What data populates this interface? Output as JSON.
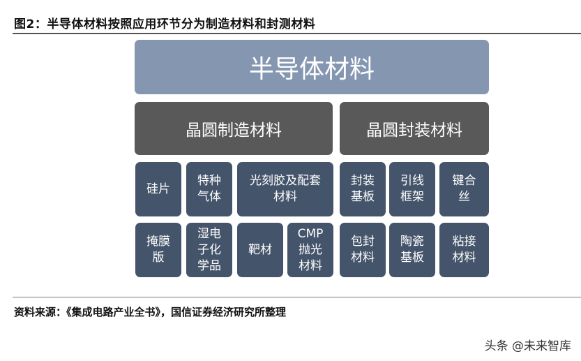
{
  "title": "图2：半导体材料按照应用环节分为制造材料和封测材料",
  "root": "半导体材料",
  "categories": [
    {
      "label": "晶圆制造材料",
      "items": [
        "硅片",
        "特种\n气体",
        "光刻胶及配套\n材料",
        "掩膜\n版",
        "湿电\n子化\n学品",
        "靶材",
        "CMP\n抛光\n材料"
      ]
    },
    {
      "label": "晶圆封装材料",
      "items": [
        "封装\n基板",
        "引线\n框架",
        "键合\n丝",
        "包封\n材料",
        "陶瓷\n基板",
        "粘接\n材料"
      ]
    }
  ],
  "source": "资料来源：《集成电路产业全书》，国信证券经济研究所整理",
  "watermark": "头条 @未来智库",
  "colors": {
    "root": "#8496B0",
    "category": "#595959",
    "item": "#44546A"
  }
}
